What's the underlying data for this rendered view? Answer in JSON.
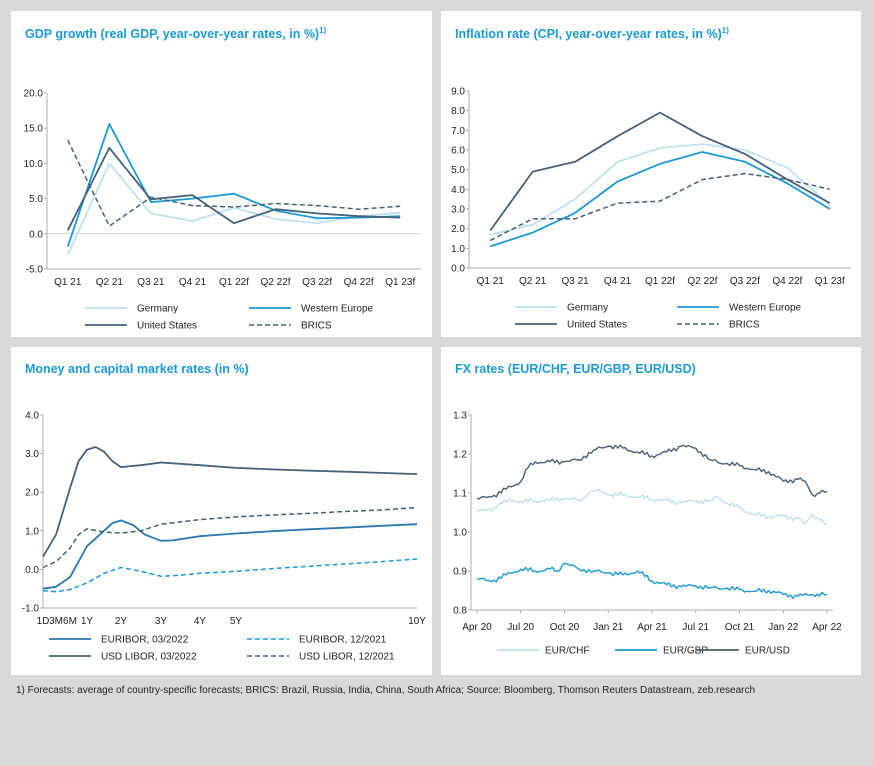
{
  "footnote": "1) Forecasts: average of country-specific forecasts; BRICS: Brazil, Russia, India, China, South Africa; Source: Bloomberg, Thomson Reuters Datastream, zeb.research",
  "colors": {
    "light": "#bde0f0",
    "mid": "#1a9ad6",
    "dark": "#44617a",
    "title": "#1a9ad6"
  },
  "chart_data": [
    {
      "id": "gdp",
      "type": "line",
      "title": "GDP growth (real GDP, year-over-year rates, in %)",
      "title_sup": "1)",
      "categories": [
        "Q1 21",
        "Q2 21",
        "Q3 21",
        "Q4 21",
        "Q1 22f",
        "Q2 22f",
        "Q3 22f",
        "Q4 22f",
        "Q1 23f"
      ],
      "ylim": [
        -5,
        20
      ],
      "yticks": [
        "-5.0",
        "0.0",
        "5.0",
        "10.0",
        "15.0",
        "20.0"
      ],
      "legend": "bottom",
      "series": [
        {
          "name": "Germany",
          "style": "light",
          "values": [
            -3.0,
            10.0,
            2.9,
            1.8,
            3.7,
            2.1,
            1.5,
            2.5,
            3.0
          ]
        },
        {
          "name": "Western Europe",
          "style": "mid",
          "values": [
            -1.8,
            15.6,
            4.5,
            5.0,
            5.7,
            3.3,
            2.2,
            2.3,
            2.5
          ]
        },
        {
          "name": "United States",
          "style": "dark",
          "values": [
            0.5,
            12.2,
            4.9,
            5.5,
            1.5,
            3.5,
            2.9,
            2.5,
            2.3
          ]
        },
        {
          "name": "BRICS",
          "style": "dashed",
          "values": [
            13.3,
            1.1,
            5.2,
            4.0,
            3.8,
            4.3,
            4.0,
            3.5,
            3.9
          ]
        }
      ]
    },
    {
      "id": "cpi",
      "type": "line",
      "title": "Inflation rate (CPI, year-over-year rates, in %)",
      "title_sup": "1)",
      "categories": [
        "Q1 21",
        "Q2 21",
        "Q3 21",
        "Q4 21",
        "Q1 22f",
        "Q2 22f",
        "Q3 22f",
        "Q4 22f",
        "Q1 23f"
      ],
      "ylim": [
        0,
        9
      ],
      "yticks": [
        "0.0",
        "1.0",
        "2.0",
        "3.0",
        "4.0",
        "5.0",
        "6.0",
        "7.0",
        "8.0",
        "9.0"
      ],
      "legend": "bottom",
      "series": [
        {
          "name": "Germany",
          "style": "light",
          "values": [
            1.7,
            2.2,
            3.5,
            5.4,
            6.1,
            6.3,
            6.0,
            5.1,
            3.2
          ]
        },
        {
          "name": "Western Europe",
          "style": "mid",
          "values": [
            1.1,
            1.8,
            2.8,
            4.4,
            5.3,
            5.9,
            5.4,
            4.3,
            3.0
          ]
        },
        {
          "name": "United States",
          "style": "dark",
          "values": [
            1.9,
            4.9,
            5.4,
            6.7,
            7.9,
            6.7,
            5.8,
            4.5,
            3.3
          ]
        },
        {
          "name": "BRICS",
          "style": "dashed",
          "values": [
            1.4,
            2.5,
            2.5,
            3.3,
            3.4,
            4.5,
            4.8,
            4.5,
            4.0
          ]
        }
      ]
    },
    {
      "id": "rates",
      "type": "line",
      "title": "Money and capital market rates (in %)",
      "ylim": [
        -1,
        4
      ],
      "yticks": [
        "-1.0",
        "0.0",
        "1.0",
        "2.0",
        "3.0",
        "4.0"
      ],
      "x_tick_labels": [
        {
          "label": "1D",
          "t": 0
        },
        {
          "label": "3M",
          "t": 0.25
        },
        {
          "label": "6M",
          "t": 0.5
        },
        {
          "label": "1Y",
          "t": 1
        },
        {
          "label": "2Y",
          "t": 2
        },
        {
          "label": "3Y",
          "t": 3
        },
        {
          "label": "4Y",
          "t": 4
        },
        {
          "label": "5Y",
          "t": 5
        },
        {
          "label": "10Y",
          "t": 10
        }
      ],
      "legend": "bottom",
      "series": [
        {
          "name": "EURIBOR, 03/2022",
          "style": "mid-dark",
          "points": [
            [
              0,
              -0.5
            ],
            [
              0.25,
              -0.45
            ],
            [
              0.5,
              -0.2
            ],
            [
              0.75,
              0.2
            ],
            [
              1,
              0.6
            ],
            [
              1.5,
              1.0
            ],
            [
              1.75,
              1.2
            ],
            [
              2,
              1.27
            ],
            [
              2.3,
              1.15
            ],
            [
              2.6,
              0.9
            ],
            [
              3,
              0.74
            ],
            [
              3.3,
              0.75
            ],
            [
              4,
              0.86
            ],
            [
              5,
              0.93
            ],
            [
              6,
              0.99
            ],
            [
              7,
              1.04
            ],
            [
              8,
              1.08
            ],
            [
              9,
              1.13
            ],
            [
              10,
              1.17
            ]
          ]
        },
        {
          "name": "EURIBOR, 12/2021",
          "style": "mid-dashed",
          "points": [
            [
              0,
              -0.55
            ],
            [
              0.25,
              -0.58
            ],
            [
              0.5,
              -0.52
            ],
            [
              1,
              -0.35
            ],
            [
              1.5,
              -0.1
            ],
            [
              2,
              0.05
            ],
            [
              2.5,
              -0.05
            ],
            [
              3,
              -0.18
            ],
            [
              3.5,
              -0.15
            ],
            [
              4,
              -0.1
            ],
            [
              5,
              -0.05
            ],
            [
              6,
              0.02
            ],
            [
              7,
              0.08
            ],
            [
              8,
              0.14
            ],
            [
              9,
              0.2
            ],
            [
              10,
              0.27
            ]
          ]
        },
        {
          "name": "USD LIBOR, 03/2022",
          "style": "dark",
          "points": [
            [
              0,
              0.33
            ],
            [
              0.25,
              0.9
            ],
            [
              0.5,
              2.1
            ],
            [
              0.75,
              2.8
            ],
            [
              1,
              3.1
            ],
            [
              1.25,
              3.17
            ],
            [
              1.5,
              3.05
            ],
            [
              1.75,
              2.8
            ],
            [
              2,
              2.65
            ],
            [
              2.5,
              2.7
            ],
            [
              3,
              2.77
            ],
            [
              4,
              2.7
            ],
            [
              5,
              2.63
            ],
            [
              6,
              2.59
            ],
            [
              7,
              2.56
            ],
            [
              8,
              2.53
            ],
            [
              9,
              2.5
            ],
            [
              10,
              2.47
            ]
          ]
        },
        {
          "name": "USD LIBOR, 12/2021",
          "style": "dark-dashed",
          "points": [
            [
              0,
              0.05
            ],
            [
              0.25,
              0.2
            ],
            [
              0.5,
              0.55
            ],
            [
              0.75,
              0.9
            ],
            [
              1,
              1.05
            ],
            [
              1.5,
              0.97
            ],
            [
              2,
              0.94
            ],
            [
              2.5,
              1.0
            ],
            [
              3,
              1.17
            ],
            [
              4,
              1.29
            ],
            [
              5,
              1.36
            ],
            [
              6,
              1.41
            ],
            [
              7,
              1.45
            ],
            [
              8,
              1.5
            ],
            [
              9,
              1.54
            ],
            [
              10,
              1.6
            ]
          ]
        }
      ]
    },
    {
      "id": "fx",
      "type": "line",
      "title": "FX rates (EUR/CHF, EUR/GBP, EUR/USD)",
      "ylim": [
        0.8,
        1.3
      ],
      "yticks": [
        "0.8",
        "0.9",
        "1.0",
        "1.1",
        "1.2",
        "1.3"
      ],
      "x_tick_labels": [
        "Apr 20",
        "Jul 20",
        "Oct 20",
        "Jan 21",
        "Apr 21",
        "Jul 21",
        "Oct 21",
        "Jan 22",
        "Apr 22"
      ],
      "legend": "bottom",
      "series": [
        {
          "name": "EUR/CHF",
          "style": "light",
          "points": [
            [
              0,
              1.055
            ],
            [
              0.5,
              1.055
            ],
            [
              1.3,
              1.06
            ],
            [
              1.6,
              1.075
            ],
            [
              2.2,
              1.085
            ],
            [
              3,
              1.078
            ],
            [
              4,
              1.08
            ],
            [
              5,
              1.082
            ],
            [
              6,
              1.085
            ],
            [
              7,
              1.082
            ],
            [
              7.5,
              1.09
            ],
            [
              7.8,
              1.105
            ],
            [
              8.5,
              1.105
            ],
            [
              9,
              1.095
            ],
            [
              10,
              1.095
            ],
            [
              11,
              1.09
            ],
            [
              12,
              1.085
            ],
            [
              13,
              1.08
            ],
            [
              14,
              1.075
            ],
            [
              15,
              1.08
            ],
            [
              16,
              1.08
            ],
            [
              16.5,
              1.09
            ],
            [
              17,
              1.075
            ],
            [
              18,
              1.062
            ],
            [
              19,
              1.045
            ],
            [
              20,
              1.04
            ],
            [
              21,
              1.04
            ],
            [
              22,
              1.035
            ],
            [
              22.5,
              1.02
            ],
            [
              23,
              1.045
            ],
            [
              23.5,
              1.03
            ],
            [
              24,
              1.02
            ]
          ]
        },
        {
          "name": "EUR/GBP",
          "style": "mid",
          "points": [
            [
              0,
              0.88
            ],
            [
              1,
              0.873
            ],
            [
              2,
              0.89
            ],
            [
              3,
              0.905
            ],
            [
              4,
              0.9
            ],
            [
              5,
              0.905
            ],
            [
              5.5,
              0.9
            ],
            [
              6,
              0.92
            ],
            [
              7,
              0.905
            ],
            [
              8,
              0.9
            ],
            [
              9,
              0.895
            ],
            [
              10,
              0.89
            ],
            [
              11,
              0.9
            ],
            [
              12,
              0.875
            ],
            [
              13,
              0.865
            ],
            [
              14,
              0.86
            ],
            [
              15,
              0.862
            ],
            [
              16,
              0.858
            ],
            [
              17,
              0.855
            ],
            [
              18,
              0.852
            ],
            [
              19,
              0.848
            ],
            [
              20,
              0.85
            ],
            [
              21,
              0.84
            ],
            [
              22,
              0.835
            ],
            [
              23,
              0.84
            ],
            [
              24,
              0.84
            ]
          ]
        },
        {
          "name": "EUR/USD",
          "style": "dark",
          "points": [
            [
              0,
              1.085
            ],
            [
              1,
              1.09
            ],
            [
              2,
              1.11
            ],
            [
              3,
              1.13
            ],
            [
              3.5,
              1.165
            ],
            [
              4,
              1.18
            ],
            [
              5,
              1.18
            ],
            [
              6,
              1.18
            ],
            [
              7,
              1.185
            ],
            [
              8,
              1.21
            ],
            [
              9,
              1.22
            ],
            [
              10,
              1.215
            ],
            [
              11,
              1.205
            ],
            [
              12,
              1.195
            ],
            [
              13,
              1.205
            ],
            [
              14,
              1.22
            ],
            [
              15,
              1.215
            ],
            [
              16,
              1.185
            ],
            [
              17,
              1.175
            ],
            [
              18,
              1.17
            ],
            [
              19,
              1.16
            ],
            [
              20,
              1.155
            ],
            [
              21,
              1.13
            ],
            [
              22,
              1.135
            ],
            [
              22.5,
              1.13
            ],
            [
              23,
              1.095
            ],
            [
              23.5,
              1.1
            ],
            [
              24,
              1.105
            ]
          ]
        }
      ]
    }
  ]
}
